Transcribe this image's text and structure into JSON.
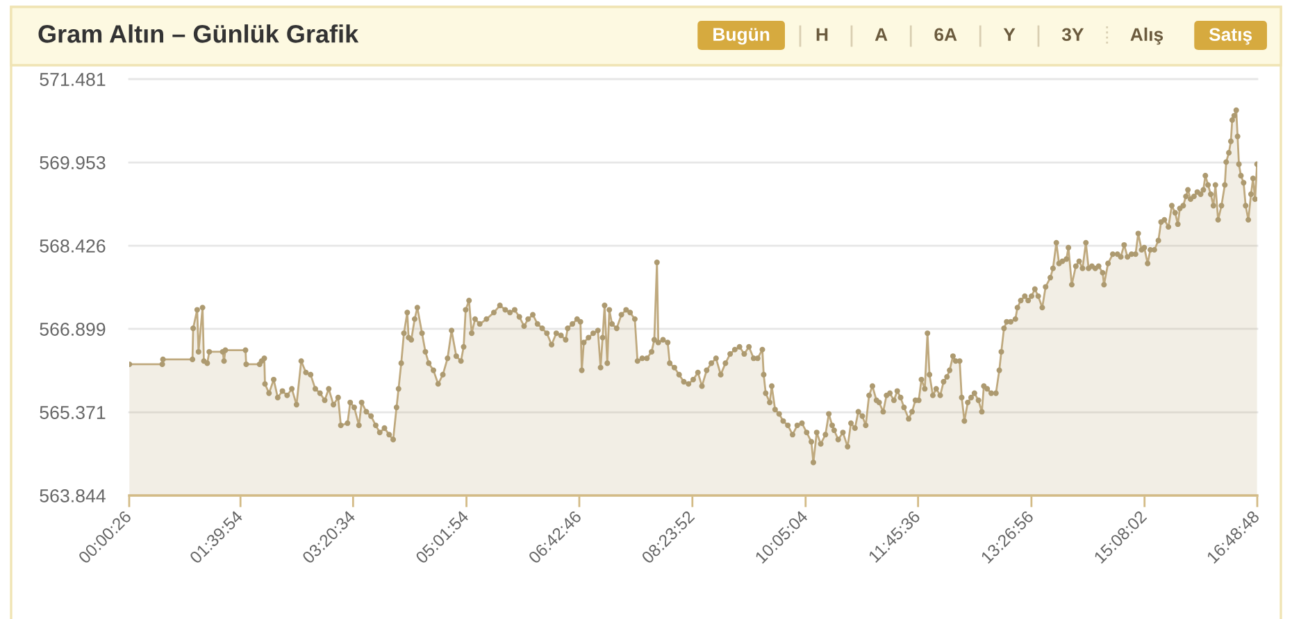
{
  "chart_data": {
    "type": "area",
    "title": "Gram Altın – Günlük Grafik",
    "annotations": [
      "Bugün",
      "H",
      "A",
      "6A",
      "Y",
      "3Y",
      "Alış",
      "Satış"
    ],
    "color": "#bfa97e",
    "marker": "circle",
    "line_style": "solid",
    "grid": "y",
    "xlim": [
      0.0072,
      16.8133
    ],
    "xticks": [
      {
        "value": 0.0072,
        "label": "00:00:26"
      },
      {
        "value": 1.665,
        "label": "01:39:54"
      },
      {
        "value": 3.3428,
        "label": "03:20:34"
      },
      {
        "value": 5.0317,
        "label": "05:01:54"
      },
      {
        "value": 6.7128,
        "label": "06:42:46"
      },
      {
        "value": 8.3978,
        "label": "08:23:52"
      },
      {
        "value": 10.0844,
        "label": "10:05:04"
      },
      {
        "value": 11.76,
        "label": "11:45:36"
      },
      {
        "value": 13.4489,
        "label": "13:26:56"
      },
      {
        "value": 15.1339,
        "label": "15:08:02"
      },
      {
        "value": 16.8133,
        "label": "16:48:48"
      }
    ],
    "ylim": [
      563.844,
      571.481
    ],
    "yticks": [
      563.844,
      565.371,
      566.899,
      568.426,
      569.953,
      571.481
    ],
    "x": [
      0.01,
      0.5,
      0.51,
      0.95,
      0.96,
      1.02,
      1.04,
      1.1,
      1.12,
      1.17,
      1.2,
      1.4,
      1.42,
      1.44,
      1.74,
      1.75,
      1.95,
      1.98,
      2.02,
      2.03,
      2.09,
      2.16,
      2.22,
      2.29,
      2.36,
      2.43,
      2.5,
      2.57,
      2.64,
      2.71,
      2.78,
      2.85,
      2.92,
      2.98,
      3.05,
      3.12,
      3.16,
      3.26,
      3.3,
      3.36,
      3.43,
      3.47,
      3.54,
      3.61,
      3.68,
      3.74,
      3.81,
      3.88,
      3.94,
      3.99,
      4.02,
      4.06,
      4.1,
      4.15,
      4.17,
      4.21,
      4.26,
      4.3,
      4.37,
      4.42,
      4.47,
      4.54,
      4.61,
      4.68,
      4.75,
      4.81,
      4.88,
      4.95,
      4.99,
      5.02,
      5.07,
      5.11,
      5.16,
      5.23,
      5.33,
      5.44,
      5.53,
      5.61,
      5.68,
      5.75,
      5.82,
      5.89,
      5.95,
      6.02,
      6.09,
      6.16,
      6.23,
      6.3,
      6.37,
      6.44,
      6.51,
      6.54,
      6.61,
      6.68,
      6.73,
      6.75,
      6.78,
      6.85,
      6.92,
      6.99,
      7.03,
      7.06,
      7.09,
      7.13,
      7.16,
      7.2,
      7.27,
      7.34,
      7.41,
      7.47,
      7.54,
      7.58,
      7.65,
      7.72,
      7.79,
      7.83,
      7.87,
      7.89,
      7.96,
      8.03,
      8.06,
      8.13,
      8.2,
      8.27,
      8.34,
      8.41,
      8.48,
      8.54,
      8.61,
      8.68,
      8.75,
      8.82,
      8.89,
      8.96,
      9.03,
      9.1,
      9.17,
      9.24,
      9.31,
      9.37,
      9.44,
      9.46,
      9.49,
      9.55,
      9.58,
      9.63,
      9.69,
      9.75,
      9.82,
      9.89,
      9.96,
      10.03,
      10.1,
      10.17,
      10.2,
      10.25,
      10.31,
      10.38,
      10.43,
      10.48,
      10.51,
      10.57,
      10.64,
      10.71,
      10.76,
      10.82,
      10.87,
      10.93,
      10.98,
      11.03,
      11.08,
      11.14,
      11.18,
      11.24,
      11.29,
      11.34,
      11.4,
      11.45,
      11.5,
      11.55,
      11.62,
      11.67,
      11.72,
      11.77,
      11.81,
      11.86,
      11.9,
      11.93,
      11.98,
      12.03,
      12.09,
      12.14,
      12.19,
      12.23,
      12.28,
      12.32,
      12.38,
      12.41,
      12.45,
      12.5,
      12.55,
      12.6,
      12.66,
      12.71,
      12.74,
      12.79,
      12.85,
      12.92,
      12.97,
      13.0,
      13.04,
      13.08,
      13.14,
      13.21,
      13.24,
      13.29,
      13.35,
      13.4,
      13.45,
      13.5,
      13.55,
      13.61,
      13.66,
      13.73,
      13.77,
      13.82,
      13.86,
      13.91,
      13.97,
      14.0,
      14.05,
      14.11,
      14.16,
      14.21,
      14.26,
      14.3,
      14.35,
      14.4,
      14.45,
      14.51,
      14.53,
      14.59,
      14.66,
      14.73,
      14.78,
      14.83,
      14.88,
      14.94,
      15.0,
      15.04,
      15.09,
      15.13,
      15.18,
      15.22,
      15.28,
      15.34,
      15.38,
      15.43,
      15.49,
      15.54,
      15.59,
      15.63,
      15.66,
      15.71,
      15.75,
      15.78,
      15.82,
      15.87,
      15.92,
      15.97,
      16.01,
      16.04,
      16.08,
      16.12,
      16.16,
      16.19,
      16.23,
      16.28,
      16.33,
      16.35,
      16.39,
      16.42,
      16.44,
      16.47,
      16.5,
      16.52,
      16.54,
      16.57,
      16.61,
      16.64,
      16.68,
      16.72,
      16.75,
      16.78,
      16.81
    ],
    "values": [
      566.25,
      566.25,
      566.34,
      566.34,
      566.91,
      567.25,
      566.48,
      567.29,
      566.31,
      566.27,
      566.48,
      566.48,
      566.31,
      566.51,
      566.51,
      566.25,
      566.25,
      566.31,
      566.36,
      565.89,
      565.72,
      565.97,
      565.64,
      565.76,
      565.68,
      565.8,
      565.51,
      566.31,
      566.1,
      566.06,
      565.8,
      565.72,
      565.59,
      565.8,
      565.51,
      565.64,
      565.13,
      565.17,
      565.55,
      565.46,
      565.13,
      565.55,
      565.38,
      565.3,
      565.13,
      565.0,
      565.08,
      564.96,
      564.87,
      565.46,
      565.8,
      566.27,
      566.82,
      567.2,
      566.74,
      566.7,
      567.08,
      567.29,
      566.82,
      566.48,
      566.27,
      566.14,
      565.89,
      566.06,
      566.36,
      566.87,
      566.4,
      566.31,
      566.57,
      567.25,
      567.42,
      566.82,
      567.08,
      566.99,
      567.08,
      567.2,
      567.33,
      567.25,
      567.2,
      567.25,
      567.12,
      566.95,
      567.08,
      567.16,
      566.99,
      566.91,
      566.82,
      566.61,
      566.82,
      566.78,
      566.7,
      566.91,
      566.99,
      567.08,
      567.03,
      566.14,
      566.65,
      566.74,
      566.82,
      566.87,
      566.19,
      566.74,
      567.33,
      566.27,
      567.25,
      566.99,
      566.91,
      567.16,
      567.25,
      567.2,
      567.08,
      566.31,
      566.36,
      566.36,
      566.48,
      566.7,
      568.12,
      566.65,
      566.7,
      566.65,
      566.27,
      566.19,
      566.06,
      565.93,
      565.89,
      565.97,
      566.1,
      565.85,
      566.14,
      566.27,
      566.36,
      566.06,
      566.27,
      566.44,
      566.52,
      566.57,
      566.44,
      566.57,
      566.36,
      566.36,
      566.52,
      566.06,
      565.72,
      565.55,
      565.85,
      565.42,
      565.34,
      565.21,
      565.13,
      564.96,
      565.13,
      565.17,
      565.0,
      564.83,
      564.45,
      565.0,
      564.79,
      564.96,
      565.34,
      565.13,
      565.04,
      564.87,
      565.0,
      564.74,
      565.17,
      565.08,
      565.38,
      565.3,
      565.13,
      565.68,
      565.85,
      565.59,
      565.55,
      565.38,
      565.68,
      565.72,
      565.59,
      565.76,
      565.64,
      565.46,
      565.25,
      565.38,
      565.59,
      565.59,
      565.97,
      565.8,
      566.82,
      566.06,
      565.68,
      565.8,
      565.68,
      565.93,
      566.02,
      566.14,
      566.4,
      566.31,
      566.31,
      565.64,
      565.21,
      565.55,
      565.64,
      565.72,
      565.59,
      565.38,
      565.85,
      565.8,
      565.72,
      565.72,
      566.14,
      566.48,
      566.91,
      567.03,
      567.03,
      567.08,
      567.29,
      567.42,
      567.5,
      567.42,
      567.5,
      567.63,
      567.5,
      567.29,
      567.67,
      567.84,
      568.01,
      568.48,
      568.1,
      568.14,
      568.18,
      568.39,
      567.71,
      568.05,
      568.14,
      568.01,
      568.48,
      568.01,
      568.05,
      568.01,
      568.05,
      567.93,
      567.71,
      568.1,
      568.27,
      568.27,
      568.22,
      568.44,
      568.22,
      568.27,
      568.27,
      568.65,
      568.35,
      568.39,
      568.1,
      568.35,
      568.35,
      568.52,
      568.86,
      568.9,
      568.77,
      569.16,
      569.03,
      568.82,
      569.11,
      569.16,
      569.33,
      569.45,
      569.28,
      569.33,
      569.41,
      569.37,
      569.45,
      569.71,
      569.54,
      569.37,
      569.16,
      569.54,
      568.9,
      569.16,
      569.54,
      569.96,
      570.13,
      570.34,
      570.73,
      570.81,
      570.91,
      570.43,
      569.92,
      569.71,
      569.58,
      569.16,
      568.9,
      569.37,
      569.66,
      569.28,
      569.92
    ]
  }
}
